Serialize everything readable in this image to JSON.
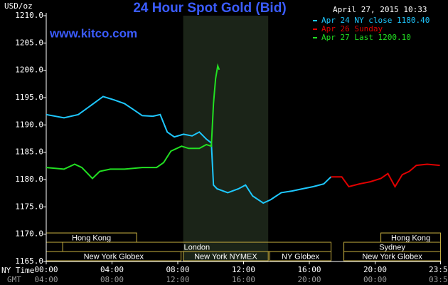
{
  "chart_data": {
    "type": "line",
    "title": "24 Hour Spot Gold (Bid)",
    "subtitle": "www.kitco.com",
    "timestamp": "April 27, 2015 10:33",
    "y_label": "USD/oz",
    "x_label": "NY Time",
    "x2_label": "GMT",
    "ylim": [
      1165,
      1210
    ],
    "yticks": [
      {
        "value": 1165,
        "label": "1165.0"
      },
      {
        "value": 1170,
        "label": "1170.0"
      },
      {
        "value": 1175,
        "label": "1175.0"
      },
      {
        "value": 1180,
        "label": "1180.0"
      },
      {
        "value": 1185,
        "label": "1185.0"
      },
      {
        "value": 1190,
        "label": "1190.0"
      },
      {
        "value": 1195,
        "label": "1195.0"
      },
      {
        "value": 1200,
        "label": "1200.0"
      },
      {
        "value": 1205,
        "label": "1205.0"
      },
      {
        "value": 1210,
        "label": "1210.0"
      }
    ],
    "xlim": [
      0,
      24
    ],
    "xticks": [
      {
        "value": 0,
        "label": "00:00"
      },
      {
        "value": 4,
        "label": "04:00"
      },
      {
        "value": 8,
        "label": "08:00"
      },
      {
        "value": 12,
        "label": "12:00"
      },
      {
        "value": 16,
        "label": "16:00"
      },
      {
        "value": 20,
        "label": "20:00"
      },
      {
        "value": 23.98,
        "label": "23:59"
      }
    ],
    "x2tick_labels": [
      "04:00",
      "08:00",
      "12:00",
      "16:00",
      "20:00",
      "00:00",
      "03:59"
    ],
    "series": [
      {
        "name": "Apr 24 NY close 1180.40",
        "color": "#1ec8ff",
        "x": [
          0,
          1.08,
          1.95,
          2.6,
          3.46,
          4.11,
          4.76,
          5.41,
          5.84,
          6.49,
          6.93,
          7.36,
          7.79,
          8.35,
          8.87,
          9.31,
          9.74,
          10.04,
          10.17,
          10.39,
          11.04,
          11.69,
          12.12,
          12.55,
          13.2,
          13.64,
          14.29,
          14.94,
          15.58,
          16.23,
          16.88,
          17.32
        ],
        "values": [
          1191.9,
          1191.3,
          1191.9,
          1193.3,
          1195.2,
          1194.6,
          1193.9,
          1192.6,
          1191.7,
          1191.6,
          1191.9,
          1188.7,
          1187.8,
          1188.3,
          1188,
          1188.7,
          1187.4,
          1186.7,
          1179,
          1178.3,
          1177.6,
          1178.3,
          1179,
          1177,
          1175.7,
          1176.3,
          1177.6,
          1177.9,
          1178.3,
          1178.7,
          1179.2,
          1180.5
        ]
      },
      {
        "name": "Apr 26 Sunday",
        "color": "#e00000",
        "x": [
          17.32,
          17.97,
          18.4,
          19.05,
          19.7,
          20.35,
          20.78,
          21.21,
          21.65,
          22.08,
          22.51,
          23.16,
          23.94
        ],
        "values": [
          1180.5,
          1180.5,
          1178.7,
          1179.2,
          1179.6,
          1180.2,
          1181.1,
          1178.7,
          1180.9,
          1181.5,
          1182.6,
          1182.8,
          1182.6
        ]
      },
      {
        "name": "Apr 27 Last 1200.10",
        "color": "#22e022",
        "x": [
          0,
          1.08,
          1.73,
          2.16,
          2.81,
          3.25,
          3.9,
          4.76,
          5.84,
          6.71,
          7.14,
          7.58,
          8.23,
          8.66,
          9.31,
          9.74,
          10.04,
          10.17,
          10.3,
          10.43,
          10.52
        ],
        "values": [
          1182.2,
          1181.9,
          1182.8,
          1182.2,
          1180.2,
          1181.5,
          1181.9,
          1181.9,
          1182.2,
          1182.2,
          1183.1,
          1185.2,
          1186.1,
          1185.7,
          1185.7,
          1186.4,
          1186.1,
          1193.9,
          1198.5,
          1200.8,
          1200.1
        ]
      }
    ],
    "sessions": [
      {
        "label": "Hong Kong",
        "start": 0,
        "end": 5.5
      },
      {
        "label": "London",
        "start": 1,
        "end": 17.32
      },
      {
        "label": "New York Globex",
        "start": 0,
        "end": 8.2
      },
      {
        "label": "New York NYMEX",
        "start": 8.33,
        "end": 13.5,
        "highlight": true
      },
      {
        "label": "NY Globex",
        "start": 13.6,
        "end": 17.32
      },
      {
        "label": "Hong Kong",
        "start": 20.35,
        "end": 23.98
      },
      {
        "label": "Sydney",
        "start": 18.1,
        "end": 23.98
      },
      {
        "label": "New York Globex",
        "start": 18.1,
        "end": 23.98
      }
    ]
  }
}
